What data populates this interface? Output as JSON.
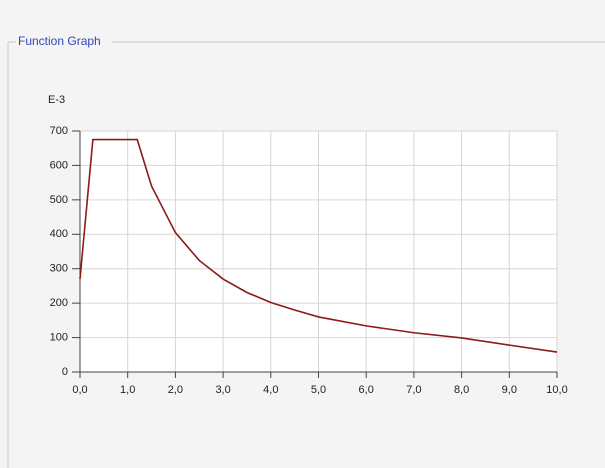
{
  "panel_title": "Function Graph",
  "chart_data": {
    "type": "line",
    "y_label": "E-3",
    "color": "#8b1a1a",
    "grid": true,
    "x": [
      0,
      0.27,
      1.2,
      1.5,
      2,
      2.5,
      3,
      3.5,
      4,
      4.5,
      5,
      6,
      7,
      8,
      9,
      10
    ],
    "values": [
      270,
      675,
      675,
      540,
      405,
      324,
      270,
      231,
      202,
      180,
      160,
      134,
      114,
      99,
      78,
      58
    ],
    "xlim": [
      0,
      10
    ],
    "xticks": [
      {
        "value": 0,
        "label": "0,0"
      },
      {
        "value": 1,
        "label": "1,0"
      },
      {
        "value": 2,
        "label": "2,0"
      },
      {
        "value": 3,
        "label": "3,0"
      },
      {
        "value": 4,
        "label": "4,0"
      },
      {
        "value": 5,
        "label": "5,0"
      },
      {
        "value": 6,
        "label": "6,0"
      },
      {
        "value": 7,
        "label": "7,0"
      },
      {
        "value": 8,
        "label": "8,0"
      },
      {
        "value": 9,
        "label": "9,0"
      },
      {
        "value": 10,
        "label": "10,0"
      }
    ],
    "ylim": [
      0,
      700
    ],
    "yticks": [
      0,
      100,
      200,
      300,
      400,
      500,
      600,
      700
    ]
  }
}
